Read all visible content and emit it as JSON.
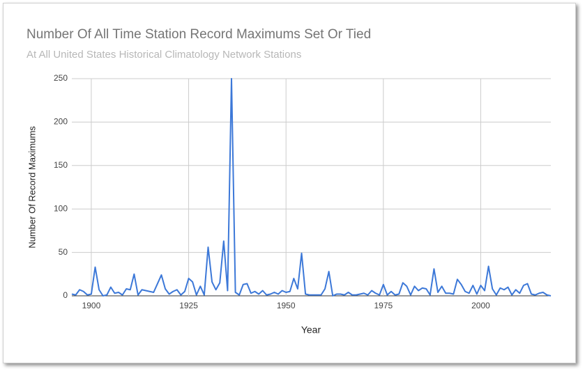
{
  "chart_data": {
    "type": "line",
    "title": "Number Of All Time Station Record Maximums Set Or Tied",
    "subtitle": "At All United States Historical Climatology Network Stations",
    "x_label": "Year",
    "y_label": "Number Of Record Maximums",
    "color": "#3c78d8",
    "grid": true,
    "xlim": [
      1895,
      2018
    ],
    "xticks": [
      1900,
      1925,
      1950,
      1975,
      2000
    ],
    "ylim": [
      0,
      250
    ],
    "yticks": [
      0,
      50,
      100,
      150,
      200,
      250
    ],
    "x": [
      1895,
      1896,
      1897,
      1898,
      1899,
      1900,
      1901,
      1902,
      1903,
      1904,
      1905,
      1906,
      1907,
      1908,
      1909,
      1910,
      1911,
      1912,
      1913,
      1914,
      1915,
      1916,
      1917,
      1918,
      1919,
      1920,
      1921,
      1922,
      1923,
      1924,
      1925,
      1926,
      1927,
      1928,
      1929,
      1930,
      1931,
      1932,
      1933,
      1934,
      1935,
      1936,
      1937,
      1938,
      1939,
      1940,
      1941,
      1942,
      1943,
      1944,
      1945,
      1946,
      1947,
      1948,
      1949,
      1950,
      1951,
      1952,
      1953,
      1954,
      1955,
      1956,
      1957,
      1958,
      1959,
      1960,
      1961,
      1962,
      1963,
      1964,
      1965,
      1966,
      1967,
      1968,
      1969,
      1970,
      1971,
      1972,
      1973,
      1974,
      1975,
      1976,
      1977,
      1978,
      1979,
      1980,
      1981,
      1982,
      1983,
      1984,
      1985,
      1986,
      1987,
      1988,
      1989,
      1990,
      1991,
      1992,
      1993,
      1994,
      1995,
      1996,
      1997,
      1998,
      1999,
      2000,
      2001,
      2002,
      2003,
      2004,
      2005,
      2006,
      2007,
      2008,
      2009,
      2010,
      2011,
      2012,
      2013,
      2014,
      2015,
      2016,
      2017,
      2018
    ],
    "values": [
      2,
      1,
      7,
      5,
      1,
      2,
      33,
      7,
      0,
      1,
      10,
      3,
      4,
      1,
      8,
      7,
      25,
      1,
      7,
      6,
      5,
      4,
      14,
      24,
      8,
      2,
      5,
      7,
      1,
      5,
      20,
      16,
      1,
      11,
      1,
      56,
      16,
      7,
      15,
      63,
      6,
      250,
      4,
      1,
      13,
      14,
      3,
      5,
      2,
      6,
      1,
      2,
      4,
      2,
      6,
      4,
      5,
      20,
      8,
      49,
      2,
      1,
      1,
      1,
      1,
      8,
      28,
      0,
      2,
      2,
      1,
      4,
      1,
      1,
      2,
      3,
      1,
      6,
      3,
      1,
      13,
      1,
      5,
      1,
      2,
      15,
      11,
      1,
      11,
      6,
      9,
      8,
      1,
      31,
      4,
      11,
      3,
      3,
      2,
      19,
      13,
      5,
      3,
      12,
      2,
      12,
      6,
      34,
      8,
      1,
      9,
      7,
      10,
      1,
      7,
      3,
      12,
      14,
      2,
      1,
      3,
      4,
      1,
      0
    ]
  }
}
